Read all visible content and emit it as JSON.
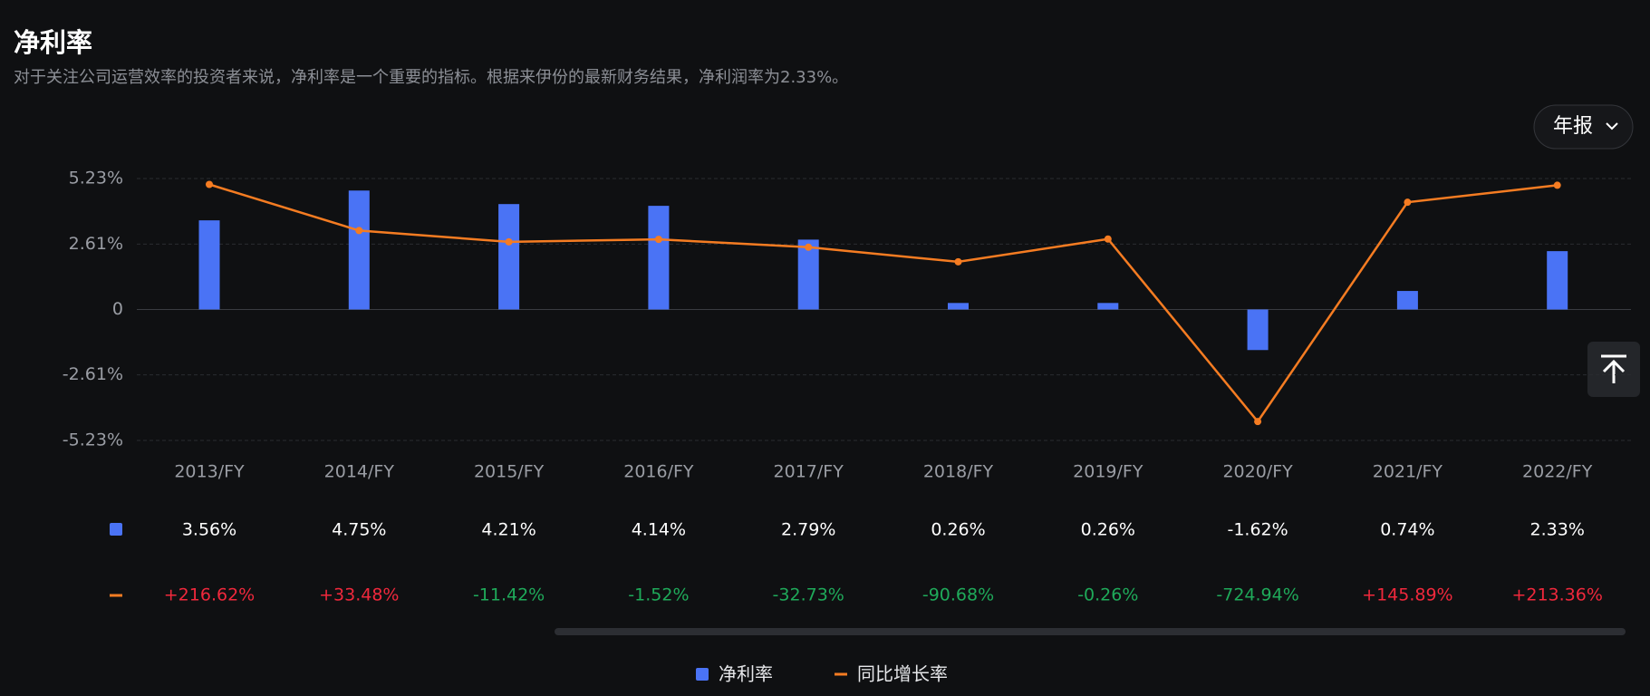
{
  "chart_data": {
    "type": "combo",
    "title": "净利率",
    "subtitle": "对于关注公司运营效率的投资者来说，净利率是一个重要的指标。根据来伊份的最新财务结果，净利润率为2.33%。",
    "period_button": "年报",
    "categories": [
      "2013/FY",
      "2014/FY",
      "2015/FY",
      "2016/FY",
      "2017/FY",
      "2018/FY",
      "2019/FY",
      "2020/FY",
      "2021/FY",
      "2022/FY"
    ],
    "series": [
      {
        "name": "净利率",
        "type": "bar",
        "color": "#4a73f5",
        "values": [
          3.56,
          4.75,
          4.21,
          4.14,
          2.79,
          0.26,
          0.26,
          -1.62,
          0.74,
          2.33
        ],
        "value_labels": [
          "3.56%",
          "4.75%",
          "4.21%",
          "4.14%",
          "2.79%",
          "0.26%",
          "0.26%",
          "-1.62%",
          "0.74%",
          "2.33%"
        ]
      },
      {
        "name": "同比增长率",
        "type": "line",
        "axis": "y2",
        "color": "#f57c22",
        "values": [
          216.62,
          33.48,
          -11.42,
          -1.52,
          -32.73,
          -90.68,
          -0.26,
          -724.94,
          145.89,
          213.36
        ],
        "value_labels": [
          "+216.62%",
          "+33.48%",
          "-11.42%",
          "-1.52%",
          "-32.73%",
          "-90.68%",
          "-0.26%",
          "-724.94%",
          "+145.89%",
          "+213.36%"
        ]
      }
    ],
    "ylim": [
      -5.23,
      5.23
    ],
    "yticks": [
      {
        "value": 5.23,
        "label": "5.23%"
      },
      {
        "value": 2.61,
        "label": "2.61%"
      },
      0,
      {
        "value": -2.61,
        "label": "-2.61%"
      },
      {
        "value": -5.23,
        "label": "-5.23%"
      }
    ],
    "y2lim": [
      -800,
      240
    ],
    "grid": true
  }
}
